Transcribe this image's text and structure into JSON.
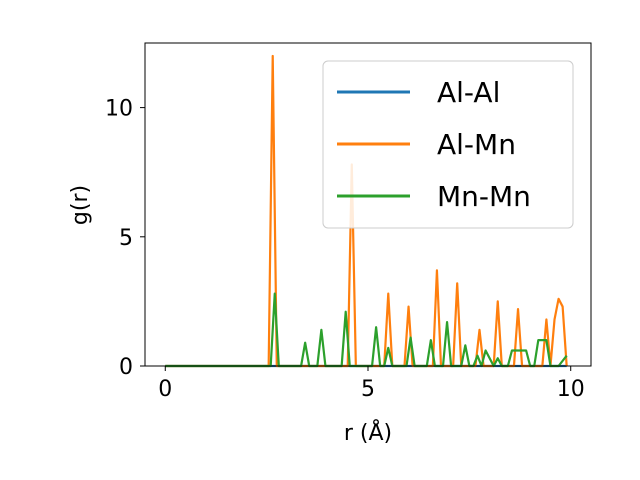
{
  "chart_data": {
    "type": "line",
    "xlabel": "r (Å)",
    "ylabel": "g(r)",
    "xlim": [
      -0.5,
      10.5
    ],
    "ylim": [
      0,
      12.5
    ],
    "xticks": [
      0,
      5,
      10
    ],
    "yticks": [
      0,
      5,
      10
    ],
    "grid": false,
    "legend_position": "top-right",
    "series": [
      {
        "name": "Al-Al",
        "color": "#1f77b4",
        "x": [
          0,
          2.5,
          3.0,
          5.0,
          7.0,
          9.9
        ],
        "y": [
          0,
          0,
          0,
          0,
          0,
          0
        ]
      },
      {
        "name": "Al-Mn",
        "color": "#ff7f0e",
        "x": [
          0,
          2.55,
          2.65,
          2.75,
          4.5,
          4.6,
          4.7,
          5.4,
          5.5,
          5.6,
          5.9,
          6.0,
          6.1,
          6.6,
          6.7,
          6.8,
          7.1,
          7.2,
          7.3,
          7.65,
          7.75,
          7.85,
          8.1,
          8.2,
          8.3,
          8.6,
          8.7,
          8.8,
          9.3,
          9.4,
          9.5,
          9.6,
          9.7,
          9.8,
          9.9
        ],
        "y": [
          0,
          0,
          12.0,
          0,
          0,
          7.8,
          0,
          0,
          2.8,
          0,
          0,
          2.3,
          0,
          0,
          3.7,
          0,
          0,
          3.2,
          0,
          0,
          1.4,
          0,
          0,
          2.5,
          0,
          0,
          2.2,
          0,
          0,
          1.8,
          0,
          1.8,
          2.6,
          2.3,
          0
        ]
      },
      {
        "name": "Mn-Mn",
        "color": "#2ca02c",
        "x": [
          0,
          2.6,
          2.7,
          2.8,
          3.35,
          3.45,
          3.55,
          3.75,
          3.85,
          3.95,
          4.35,
          4.45,
          4.55,
          5.1,
          5.2,
          5.3,
          5.4,
          5.5,
          5.6,
          5.95,
          6.05,
          6.15,
          6.45,
          6.55,
          6.65,
          6.85,
          6.95,
          7.05,
          7.3,
          7.4,
          7.5,
          7.6,
          7.7,
          7.8,
          7.9,
          8.1,
          8.2,
          8.3,
          8.45,
          8.55,
          8.7,
          8.8,
          8.9,
          9.0,
          9.1,
          9.2,
          9.3,
          9.4,
          9.5,
          9.7,
          9.9
        ],
        "y": [
          0,
          0,
          2.8,
          0,
          0,
          0.9,
          0,
          0,
          1.4,
          0,
          0,
          2.1,
          0,
          0,
          1.5,
          0,
          0,
          0.7,
          0,
          0,
          1.1,
          0,
          0,
          1.0,
          0,
          0,
          1.7,
          0,
          0,
          0.8,
          0,
          0,
          0.4,
          0,
          0.6,
          0,
          0.3,
          0,
          0,
          0.6,
          0.6,
          0.6,
          0.6,
          0,
          0,
          1.0,
          1.0,
          1.0,
          0,
          0,
          0.4
        ]
      }
    ]
  }
}
